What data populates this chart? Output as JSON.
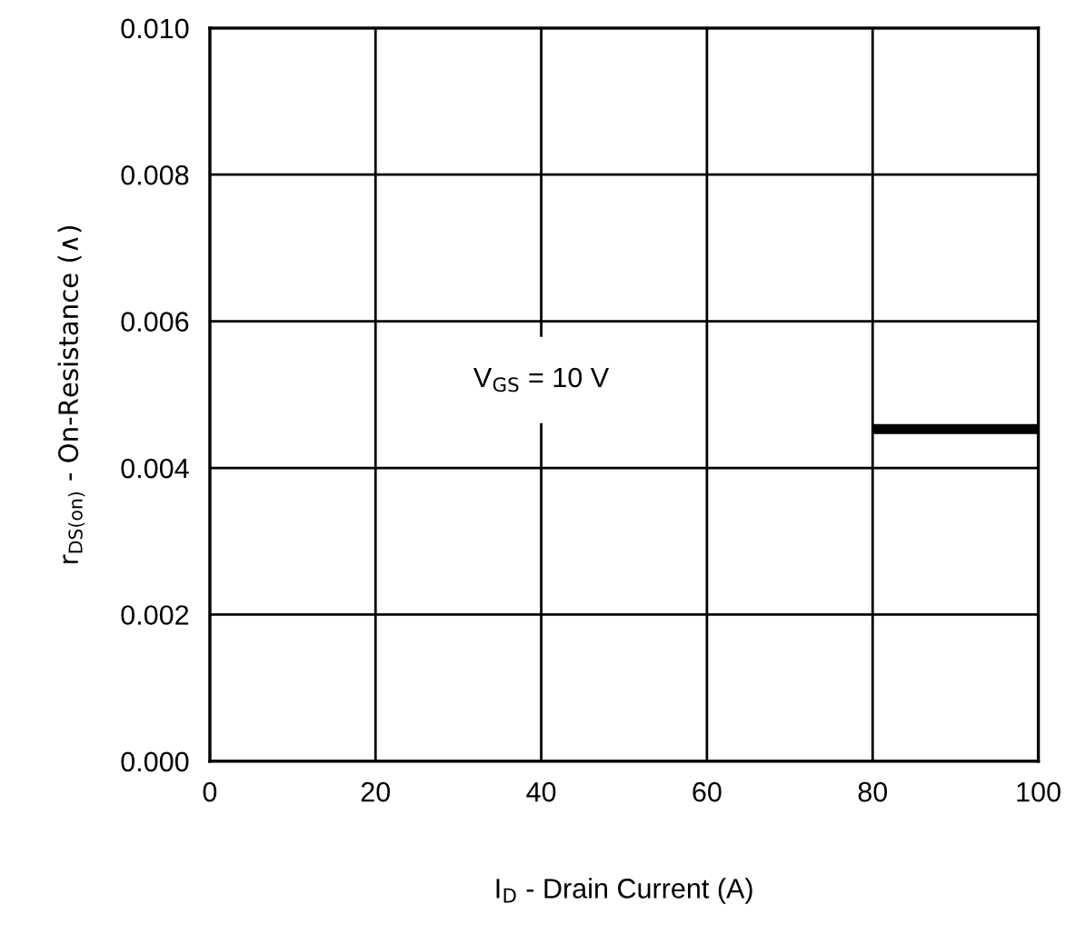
{
  "chart_data": {
    "type": "line",
    "xlabel": "I$_{D}$ - Drain Current (A)",
    "ylabel": "r$_{DS(on)}$ - On-Resistance (∧)",
    "x": [
      80,
      100
    ],
    "series": [
      {
        "color": "#000000",
        "values": [
          0.00453,
          0.00453
        ]
      }
    ],
    "xlim": [
      0,
      100
    ],
    "xticks": [
      0,
      20,
      40,
      60,
      80,
      100
    ],
    "ylim": [
      0,
      0.01
    ],
    "yticks": [
      {
        "value": 0,
        "label": "0.000"
      },
      {
        "value": 0.002,
        "label": "0.002"
      },
      {
        "value": 0.004,
        "label": "0.004"
      },
      {
        "value": 0.006,
        "label": "0.006"
      },
      {
        "value": 0.008,
        "label": "0.008"
      },
      {
        "value": 0.01,
        "label": "0.010"
      }
    ],
    "grid": true,
    "annotations": [
      "V$_{GS}$ = 10 V"
    ]
  }
}
